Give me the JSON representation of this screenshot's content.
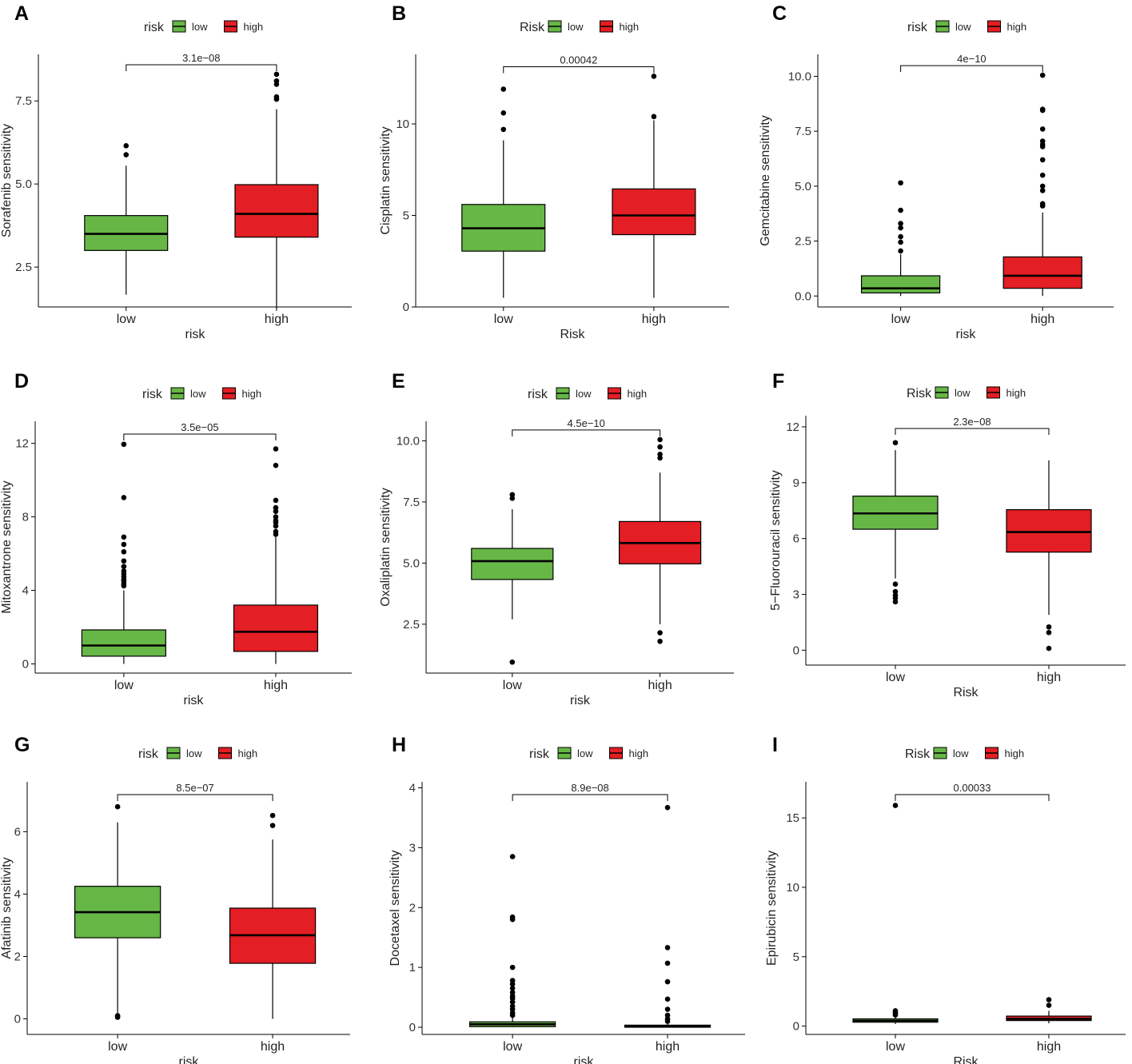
{
  "colors": {
    "low": "#66B746",
    "high": "#E31E24",
    "line": "#000000"
  },
  "chart_data": [
    {
      "type": "box",
      "panel": "A",
      "legend_title": "risk",
      "legend": [
        "low",
        "high"
      ],
      "categories": [
        "low",
        "high"
      ],
      "xlabel": "risk",
      "ylabel": "Sorafenib sensitivity",
      "ylim": [
        1.3,
        8.9
      ],
      "yticks": [
        2.5,
        5.0,
        7.5
      ],
      "ytick_labels": [
        "2.5",
        "5.0",
        "7.5"
      ],
      "pvalue": "3.1e−08",
      "series": [
        {
          "name": "low",
          "min": 1.67,
          "q1": 3.0,
          "median": 3.5,
          "q3": 4.05,
          "max": 5.55,
          "outliers": [
            5.88,
            6.15
          ]
        },
        {
          "name": "high",
          "min": 1.25,
          "q1": 3.4,
          "median": 4.1,
          "q3": 4.98,
          "max": 7.25,
          "outliers": [
            7.55,
            7.62,
            8.0,
            8.1,
            8.3
          ]
        }
      ]
    },
    {
      "type": "box",
      "panel": "B",
      "legend_title": "Risk",
      "legend": [
        "low",
        "high"
      ],
      "categories": [
        "low",
        "high"
      ],
      "xlabel": "Risk",
      "ylabel": "Cisplatin sensitivity",
      "ylim": [
        0,
        13.8
      ],
      "yticks": [
        0,
        5,
        10
      ],
      "ytick_labels": [
        "0",
        "5",
        "10"
      ],
      "pvalue": "0.00042",
      "series": [
        {
          "name": "low",
          "min": 0.5,
          "q1": 3.05,
          "median": 4.3,
          "q3": 5.6,
          "max": 9.1,
          "outliers": [
            9.7,
            10.6,
            11.9
          ]
        },
        {
          "name": "high",
          "min": 0.5,
          "q1": 3.95,
          "median": 5.0,
          "q3": 6.45,
          "max": 10.2,
          "outliers": [
            10.4,
            12.6
          ]
        }
      ]
    },
    {
      "type": "box",
      "panel": "C",
      "legend_title": "risk",
      "legend": [
        "low",
        "high"
      ],
      "categories": [
        "low",
        "high"
      ],
      "xlabel": "risk",
      "ylabel": "Gemcitabine sensitivity",
      "ylim": [
        -0.5,
        11.0
      ],
      "yticks": [
        0.0,
        2.5,
        5.0,
        7.5,
        10.0
      ],
      "ytick_labels": [
        "0.0",
        "2.5",
        "5.0",
        "7.5",
        "10.0"
      ],
      "pvalue": "4e−10",
      "series": [
        {
          "name": "low",
          "min": 0.0,
          "q1": 0.14,
          "median": 0.35,
          "q3": 0.92,
          "max": 1.9,
          "outliers": [
            2.05,
            2.45,
            2.7,
            3.1,
            3.3,
            3.9,
            5.15
          ]
        },
        {
          "name": "high",
          "min": 0.0,
          "q1": 0.35,
          "median": 0.92,
          "q3": 1.78,
          "max": 3.8,
          "outliers": [
            4.1,
            4.2,
            4.8,
            5.0,
            5.5,
            6.2,
            6.8,
            6.9,
            7.05,
            7.6,
            8.45,
            8.5,
            10.05
          ]
        }
      ]
    },
    {
      "type": "box",
      "panel": "D",
      "legend_title": "risk",
      "legend": [
        "low",
        "high"
      ],
      "categories": [
        "low",
        "high"
      ],
      "xlabel": "risk",
      "ylabel": "Mitoxantrone sensitivity",
      "ylim": [
        -0.5,
        13.2
      ],
      "yticks": [
        0,
        4,
        8,
        12
      ],
      "ytick_labels": [
        "0",
        "4",
        "8",
        "12"
      ],
      "pvalue": "3.5e−05",
      "series": [
        {
          "name": "low",
          "min": 0.0,
          "q1": 0.42,
          "median": 1.0,
          "q3": 1.85,
          "max": 4.0,
          "outliers": [
            4.25,
            4.35,
            4.5,
            4.6,
            4.75,
            4.9,
            5.05,
            5.3,
            5.6,
            6.1,
            6.5,
            6.9,
            9.05,
            11.95
          ]
        },
        {
          "name": "high",
          "min": 0.0,
          "q1": 0.68,
          "median": 1.75,
          "q3": 3.2,
          "max": 6.9,
          "outliers": [
            7.05,
            7.2,
            7.5,
            7.7,
            7.8,
            8.0,
            8.3,
            8.5,
            8.9,
            10.8,
            11.7
          ]
        }
      ]
    },
    {
      "type": "box",
      "panel": "E",
      "legend_title": "risk",
      "legend": [
        "low",
        "high"
      ],
      "categories": [
        "low",
        "high"
      ],
      "xlabel": "risk",
      "ylabel": "Oxaliplatin sensitivity",
      "ylim": [
        0.5,
        10.8
      ],
      "yticks": [
        2.5,
        5.0,
        7.5,
        10.0
      ],
      "ytick_labels": [
        "2.5",
        "5.0",
        "7.5",
        "10.0"
      ],
      "pvalue": "4.5e−10",
      "series": [
        {
          "name": "low",
          "min": 2.7,
          "q1": 4.33,
          "median": 5.08,
          "q3": 5.6,
          "max": 7.2,
          "outliers": [
            0.95,
            7.65,
            7.8
          ]
        },
        {
          "name": "high",
          "min": 2.5,
          "q1": 4.97,
          "median": 5.82,
          "q3": 6.7,
          "max": 8.7,
          "outliers": [
            1.8,
            2.15,
            9.3,
            9.45,
            9.75,
            10.05
          ]
        }
      ]
    },
    {
      "type": "box",
      "panel": "F",
      "legend_title": "Risk",
      "legend": [
        "low",
        "high"
      ],
      "categories": [
        "low",
        "high"
      ],
      "xlabel": "Risk",
      "ylabel": "5−Fluorouracil sensitivity",
      "ylim": [
        -0.8,
        12.6
      ],
      "yticks": [
        0,
        3,
        6,
        9,
        12
      ],
      "ytick_labels": [
        "0",
        "3",
        "6",
        "9",
        "12"
      ],
      "pvalue": "2.3e−08",
      "series": [
        {
          "name": "low",
          "min": 3.85,
          "q1": 6.5,
          "median": 7.35,
          "q3": 8.28,
          "max": 10.75,
          "outliers": [
            2.6,
            2.8,
            2.95,
            3.15,
            3.55,
            11.15
          ]
        },
        {
          "name": "high",
          "min": 1.9,
          "q1": 5.27,
          "median": 6.35,
          "q3": 7.55,
          "max": 10.2,
          "outliers": [
            0.1,
            0.95,
            1.25
          ]
        }
      ]
    },
    {
      "type": "box",
      "panel": "G",
      "legend_title": "risk",
      "legend": [
        "low",
        "high"
      ],
      "categories": [
        "low",
        "high"
      ],
      "xlabel": "risk",
      "ylabel": "Afatinib sensitivity",
      "ylim": [
        -0.5,
        7.6
      ],
      "yticks": [
        0,
        2,
        4,
        6
      ],
      "ytick_labels": [
        "0",
        "2",
        "4",
        "6"
      ],
      "pvalue": "8.5e−07",
      "series": [
        {
          "name": "low",
          "min": 0.12,
          "q1": 2.6,
          "median": 3.42,
          "q3": 4.25,
          "max": 6.3,
          "outliers": [
            0.05,
            0.1,
            6.8
          ]
        },
        {
          "name": "high",
          "min": 0.0,
          "q1": 1.78,
          "median": 2.68,
          "q3": 3.55,
          "max": 5.75,
          "outliers": [
            6.2,
            6.52
          ]
        }
      ]
    },
    {
      "type": "box",
      "panel": "H",
      "legend_title": "risk",
      "legend": [
        "low",
        "high"
      ],
      "categories": [
        "low",
        "high"
      ],
      "xlabel": "risk",
      "ylabel": "Docetaxel sensitivity",
      "ylim": [
        -0.12,
        4.1
      ],
      "yticks": [
        0,
        1,
        2,
        3,
        4
      ],
      "ytick_labels": [
        "0",
        "1",
        "2",
        "3",
        "4"
      ],
      "pvalue": "8.9e−08",
      "series": [
        {
          "name": "low",
          "min": 0.0,
          "q1": 0.01,
          "median": 0.05,
          "q3": 0.09,
          "max": 0.19,
          "outliers": [
            0.2,
            0.24,
            0.3,
            0.35,
            0.42,
            0.48,
            0.52,
            0.58,
            0.65,
            0.72,
            0.78,
            1.0,
            1.8,
            1.84,
            2.85
          ]
        },
        {
          "name": "high",
          "min": 0.0,
          "q1": 0.0,
          "median": 0.015,
          "q3": 0.035,
          "max": 0.08,
          "outliers": [
            0.1,
            0.14,
            0.2,
            0.3,
            0.47,
            0.76,
            1.07,
            1.33,
            3.67
          ]
        }
      ]
    },
    {
      "type": "box",
      "panel": "I",
      "legend_title": "Risk",
      "legend": [
        "low",
        "high"
      ],
      "categories": [
        "low",
        "high"
      ],
      "xlabel": "Risk",
      "ylabel": "Epirubicin sensitivity",
      "ylim": [
        -0.6,
        17.6
      ],
      "yticks": [
        0,
        5,
        10,
        15
      ],
      "ytick_labels": [
        "0",
        "5",
        "10",
        "15"
      ],
      "pvalue": "0.00033",
      "series": [
        {
          "name": "low",
          "min": 0.15,
          "q1": 0.28,
          "median": 0.38,
          "q3": 0.52,
          "max": 0.7,
          "outliers": [
            0.8,
            0.9,
            1.0,
            1.1,
            15.9
          ]
        },
        {
          "name": "high",
          "min": 0.2,
          "q1": 0.4,
          "median": 0.52,
          "q3": 0.72,
          "max": 1.1,
          "outliers": [
            1.5,
            1.9
          ]
        }
      ]
    }
  ]
}
